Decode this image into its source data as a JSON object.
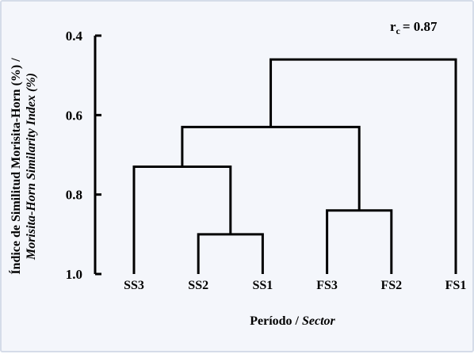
{
  "chart_data": {
    "type": "dendrogram",
    "coefficient": {
      "symbol": "r",
      "subscript": "c",
      "equals": "= 0.87"
    },
    "y_axis": {
      "label_line1": "Índice de Similitud Morisita-Horn (%) /",
      "label_line2": "Morisita-Horn Similarity Index (%)",
      "ticks": [
        "0.4",
        "0.6",
        "0.8",
        "1.0"
      ],
      "tick_values": [
        0.4,
        0.6,
        0.8,
        1.0
      ],
      "range": [
        0.4,
        1.0
      ]
    },
    "x_axis": {
      "label_main": "Período /",
      "label_italic": "Sector"
    },
    "leaves": [
      "SS3",
      "SS2",
      "SS1",
      "FS3",
      "FS2",
      "FS1"
    ],
    "merges": [
      {
        "id": "m1",
        "left": "SS2",
        "right": "SS1",
        "similarity": 0.9
      },
      {
        "id": "m2",
        "left": "FS3",
        "right": "FS2",
        "similarity": 0.84
      },
      {
        "id": "m3",
        "left": "SS3",
        "right": "m1",
        "similarity": 0.73
      },
      {
        "id": "m4",
        "left": "m3",
        "right": "m2",
        "similarity": 0.63
      },
      {
        "id": "m5",
        "left": "m4",
        "right": "FS1",
        "similarity": 0.46
      }
    ],
    "grid": false,
    "legend": "none"
  }
}
